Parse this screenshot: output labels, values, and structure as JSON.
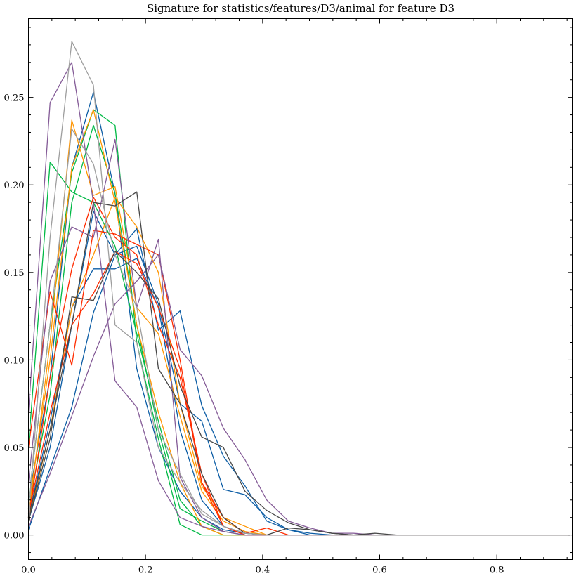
{
  "chart_data": {
    "type": "line",
    "title": "Signature for statistics/features/D3/animal for feature D3",
    "xlabel": "",
    "ylabel": "",
    "xlim": [
      0.0,
      0.93
    ],
    "ylim": [
      -0.014,
      0.295
    ],
    "x_ticks": [
      0.0,
      0.2,
      0.4,
      0.6,
      0.8
    ],
    "x_tick_labels": [
      "0.0",
      "0.2",
      "0.4",
      "0.6",
      "0.8"
    ],
    "y_ticks": [
      0.0,
      0.05,
      0.1,
      0.15,
      0.2,
      0.25
    ],
    "y_tick_labels": [
      "0.00",
      "0.05",
      "0.10",
      "0.15",
      "0.20",
      "0.25"
    ],
    "grid": false,
    "legend": "none",
    "x": [
      0.0,
      0.037,
      0.074,
      0.111,
      0.148,
      0.185,
      0.222,
      0.259,
      0.296,
      0.333,
      0.37,
      0.407,
      0.444,
      0.481,
      0.518,
      0.555,
      0.592,
      0.629,
      0.666,
      0.703,
      0.74,
      0.777,
      0.814,
      0.851,
      0.888,
      0.925
    ],
    "series": [
      {
        "color": "#0C5DA5",
        "values": [
          0.003,
          0.038,
          0.073,
          0.127,
          0.16,
          0.175,
          0.117,
          0.128,
          0.074,
          0.045,
          0.028,
          0.008,
          0.003,
          0.001,
          0.0,
          0.0,
          0.0,
          0.0,
          0.0,
          0.0,
          0.0,
          0.0,
          0.0,
          0.0,
          0.0,
          0.0
        ]
      },
      {
        "color": "#0C5DA5",
        "values": [
          0.02,
          0.09,
          0.21,
          0.253,
          0.195,
          0.095,
          0.05,
          0.025,
          0.01,
          0.003,
          0.001,
          0.0,
          0.0,
          0.0,
          0.0,
          0.0,
          0.0,
          0.0,
          0.0,
          0.0,
          0.0,
          0.0,
          0.0,
          0.0,
          0.0,
          0.0
        ]
      },
      {
        "color": "#0C5DA5",
        "values": [
          0.01,
          0.065,
          0.13,
          0.152,
          0.152,
          0.158,
          0.13,
          0.06,
          0.02,
          0.005,
          0.001,
          0.0,
          0.0,
          0.0,
          0.0,
          0.0,
          0.0,
          0.0,
          0.0,
          0.0,
          0.0,
          0.0,
          0.0,
          0.0,
          0.0,
          0.0
        ]
      },
      {
        "color": "#0C5DA5",
        "values": [
          0.008,
          0.05,
          0.12,
          0.185,
          0.16,
          0.165,
          0.132,
          0.075,
          0.065,
          0.026,
          0.023,
          0.01,
          0.003,
          0.0,
          0.0,
          0.0,
          0.0,
          0.0,
          0.0,
          0.0,
          0.0,
          0.0,
          0.0,
          0.0,
          0.0,
          0.0
        ]
      },
      {
        "color": "#00B945",
        "values": [
          0.05,
          0.213,
          0.196,
          0.19,
          0.165,
          0.115,
          0.065,
          0.02,
          0.005,
          0.0,
          0.0,
          0.0,
          0.0,
          0.0,
          0.0,
          0.0,
          0.0,
          0.0,
          0.0,
          0.0,
          0.0,
          0.0,
          0.0,
          0.0,
          0.0,
          0.0
        ]
      },
      {
        "color": "#00B945",
        "values": [
          0.02,
          0.12,
          0.207,
          0.243,
          0.234,
          0.11,
          0.055,
          0.006,
          0.0,
          0.0,
          0.0,
          0.0,
          0.0,
          0.0,
          0.0,
          0.0,
          0.0,
          0.0,
          0.0,
          0.0,
          0.0,
          0.0,
          0.0,
          0.0,
          0.0,
          0.0
        ]
      },
      {
        "color": "#00B945",
        "values": [
          0.015,
          0.08,
          0.19,
          0.234,
          0.195,
          0.12,
          0.06,
          0.015,
          0.008,
          0.002,
          0.0,
          0.0,
          0.0,
          0.0,
          0.0,
          0.0,
          0.0,
          0.0,
          0.0,
          0.0,
          0.0,
          0.0,
          0.0,
          0.0,
          0.0,
          0.0
        ]
      },
      {
        "color": "#FF9500",
        "values": [
          0.01,
          0.11,
          0.237,
          0.194,
          0.199,
          0.13,
          0.115,
          0.068,
          0.025,
          0.008,
          0.002,
          0.0,
          0.0,
          0.0,
          0.0,
          0.0,
          0.0,
          0.0,
          0.0,
          0.0,
          0.0,
          0.0,
          0.0,
          0.0,
          0.0,
          0.0
        ]
      },
      {
        "color": "#FF9500",
        "values": [
          0.015,
          0.1,
          0.21,
          0.243,
          0.19,
          0.12,
          0.07,
          0.03,
          0.005,
          0.0,
          0.0,
          0.0,
          0.0,
          0.0,
          0.0,
          0.0,
          0.0,
          0.0,
          0.0,
          0.0,
          0.0,
          0.0,
          0.0,
          0.0,
          0.0,
          0.0
        ]
      },
      {
        "color": "#FF9500",
        "values": [
          0.008,
          0.06,
          0.13,
          0.16,
          0.193,
          0.176,
          0.15,
          0.075,
          0.028,
          0.01,
          0.005,
          0.0,
          0.0,
          0.0,
          0.0,
          0.0,
          0.0,
          0.0,
          0.0,
          0.0,
          0.0,
          0.0,
          0.0,
          0.0,
          0.0,
          0.0
        ]
      },
      {
        "color": "#FF2C00",
        "values": [
          0.05,
          0.139,
          0.097,
          0.174,
          0.172,
          0.166,
          0.16,
          0.1,
          0.03,
          0.01,
          0.001,
          0.004,
          0.0,
          0.0,
          0.0,
          0.0,
          0.0,
          0.0,
          0.0,
          0.0,
          0.0,
          0.0,
          0.0,
          0.0,
          0.0,
          0.0
        ]
      },
      {
        "color": "#FF2C00",
        "values": [
          0.01,
          0.09,
          0.152,
          0.193,
          0.17,
          0.16,
          0.12,
          0.09,
          0.035,
          0.005,
          0.0,
          0.0,
          0.0,
          0.0,
          0.0,
          0.0,
          0.0,
          0.0,
          0.0,
          0.0,
          0.0,
          0.0,
          0.0,
          0.0,
          0.0,
          0.0
        ]
      },
      {
        "color": "#FF2C00",
        "values": [
          0.012,
          0.07,
          0.12,
          0.138,
          0.162,
          0.155,
          0.13,
          0.095,
          0.03,
          0.005,
          0.0,
          0.0,
          0.0,
          0.0,
          0.0,
          0.0,
          0.0,
          0.0,
          0.0,
          0.0,
          0.0,
          0.0,
          0.0,
          0.0,
          0.0,
          0.0
        ]
      },
      {
        "color": "#845B97",
        "values": [
          0.07,
          0.247,
          0.27,
          0.19,
          0.088,
          0.073,
          0.031,
          0.01,
          0.005,
          0.002,
          0.0,
          0.0,
          0.0,
          0.0,
          0.0,
          0.0,
          0.0,
          0.0,
          0.0,
          0.0,
          0.0,
          0.0,
          0.0,
          0.0,
          0.0,
          0.0
        ]
      },
      {
        "color": "#845B97",
        "values": [
          0.03,
          0.145,
          0.176,
          0.17,
          0.226,
          0.13,
          0.169,
          0.033,
          0.01,
          0.002,
          0.0,
          0.0,
          0.0,
          0.0,
          0.0,
          0.0,
          0.0,
          0.0,
          0.0,
          0.0,
          0.0,
          0.0,
          0.0,
          0.0,
          0.0,
          0.0
        ]
      },
      {
        "color": "#845B97",
        "values": [
          0.005,
          0.035,
          0.068,
          0.102,
          0.132,
          0.145,
          0.16,
          0.106,
          0.091,
          0.061,
          0.043,
          0.02,
          0.008,
          0.004,
          0.001,
          0.001,
          0.0,
          0.0,
          0.0,
          0.0,
          0.0,
          0.0,
          0.0,
          0.0,
          0.0,
          0.0
        ]
      },
      {
        "color": "#474747",
        "values": [
          0.008,
          0.055,
          0.136,
          0.134,
          0.162,
          0.15,
          0.135,
          0.085,
          0.056,
          0.05,
          0.025,
          0.014,
          0.007,
          0.003,
          0.001,
          0.0,
          0.001,
          0.0,
          0.0,
          0.0,
          0.0,
          0.0,
          0.0,
          0.0,
          0.0,
          0.0
        ]
      },
      {
        "color": "#474747",
        "values": [
          0.01,
          0.06,
          0.12,
          0.19,
          0.188,
          0.196,
          0.095,
          0.075,
          0.035,
          0.01,
          0.001,
          0.0,
          0.004,
          0.003,
          0.001,
          0.0,
          0.0,
          0.0,
          0.0,
          0.0,
          0.0,
          0.0,
          0.0,
          0.0,
          0.0,
          0.0
        ]
      },
      {
        "color": "#9e9e9e",
        "values": [
          0.01,
          0.17,
          0.282,
          0.257,
          0.12,
          0.11,
          0.05,
          0.03,
          0.014,
          0.005,
          0.001,
          0.0,
          0.0,
          0.0,
          0.0,
          0.0,
          0.0,
          0.0,
          0.0,
          0.0,
          0.0,
          0.0,
          0.0,
          0.0,
          0.0,
          0.0
        ]
      },
      {
        "color": "#9e9e9e",
        "values": [
          0.02,
          0.12,
          0.232,
          0.212,
          0.16,
          0.13,
          0.06,
          0.035,
          0.012,
          0.005,
          0.001,
          0.0,
          0.0,
          0.0,
          0.0,
          0.0,
          0.0,
          0.0,
          0.0,
          0.0,
          0.0,
          0.0,
          0.0,
          0.0,
          0.0,
          0.0
        ]
      }
    ]
  }
}
